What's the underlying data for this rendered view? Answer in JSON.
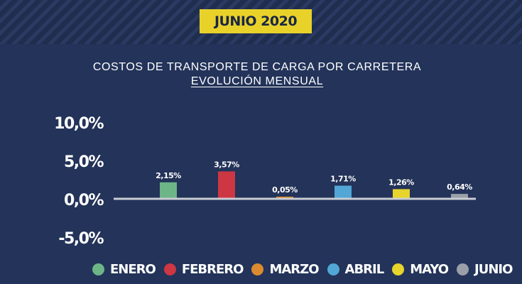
{
  "header": {
    "badge": "JUNIO 2020"
  },
  "chart_data": {
    "type": "bar",
    "title": "COSTOS DE TRANSPORTE DE CARGA POR CARRETERA",
    "subtitle": "EVOLUCIÓN MENSUAL",
    "categories": [
      "ENERO",
      "FEBRERO",
      "MARZO",
      "ABRIL",
      "MAYO",
      "JUNIO"
    ],
    "values": [
      2.15,
      3.57,
      0.05,
      1.71,
      1.26,
      0.64
    ],
    "value_labels": [
      "2,15%",
      "3,57%",
      "0,05%",
      "1,71%",
      "1,26%",
      "0,64%"
    ],
    "colors": [
      "#6db587",
      "#cc3743",
      "#dc8a30",
      "#52a7d6",
      "#e7d42c",
      "#9b9fa8"
    ],
    "ylim": [
      -5,
      10
    ],
    "yticks": [
      10,
      5,
      0,
      -5
    ],
    "ytick_labels": [
      "10,0%",
      "5,0%",
      "0,0%",
      "-5,0%"
    ],
    "legend_position": "bottom",
    "grid": false
  }
}
